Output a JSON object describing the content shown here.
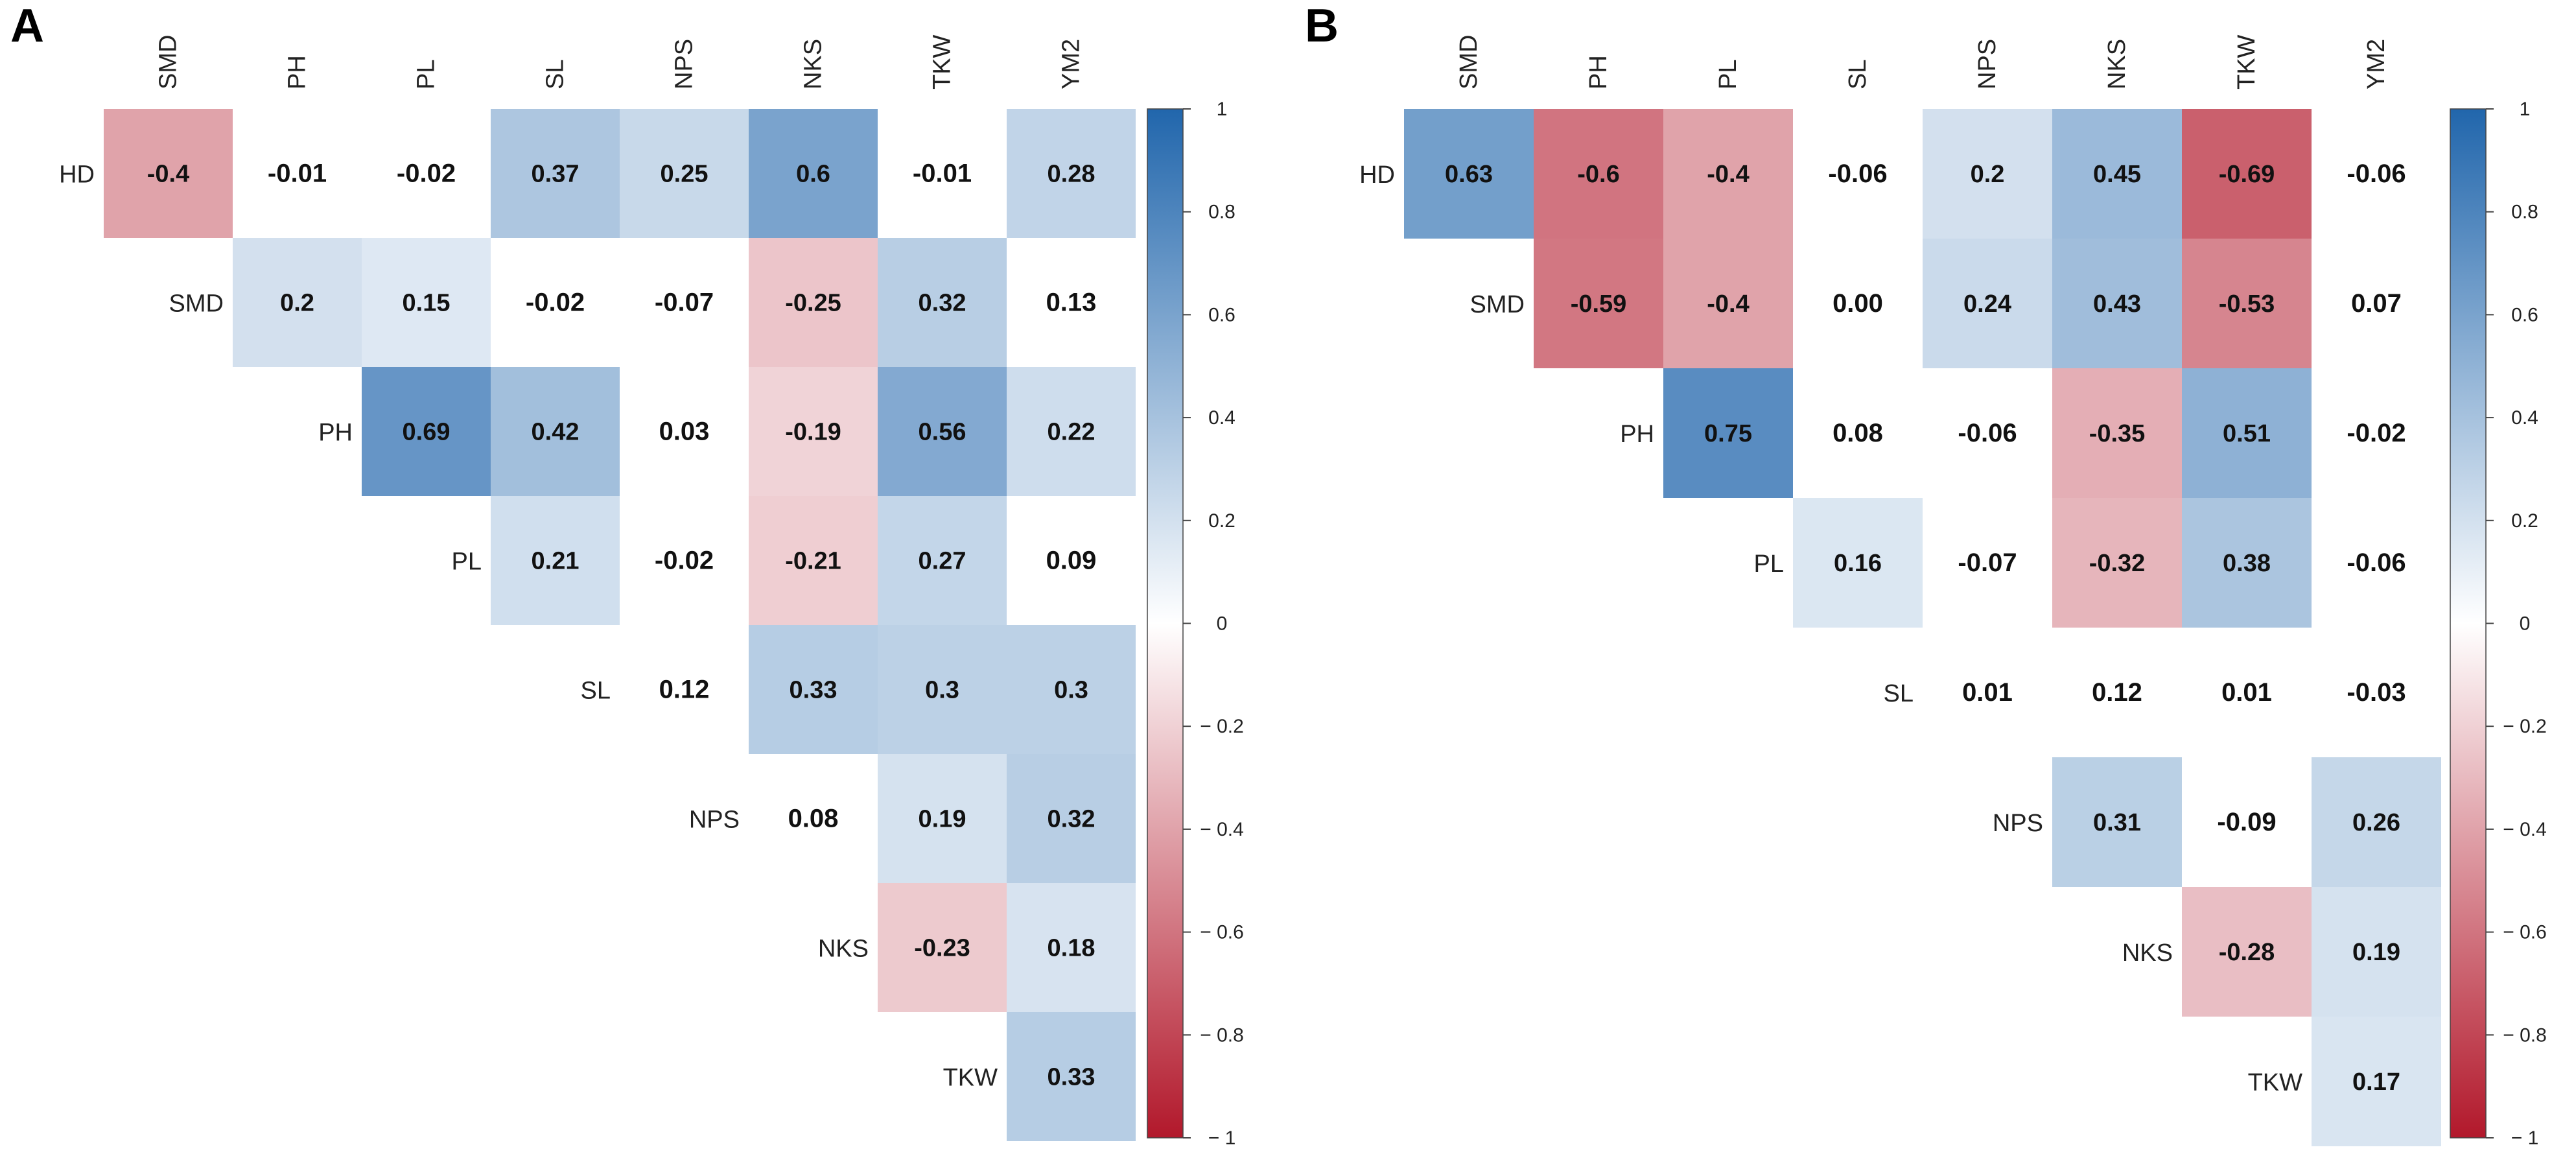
{
  "chart_data": [
    {
      "type": "heatmap",
      "panel_label": "A",
      "columns": [
        "SMD",
        "PH",
        "PL",
        "SL",
        "NPS",
        "NKS",
        "TKW",
        "YM2"
      ],
      "rows": [
        "HD",
        "SMD",
        "PH",
        "PL",
        "SL",
        "NPS",
        "NKS",
        "TKW"
      ],
      "values": [
        [
          "-0.4",
          "-0.01",
          "-0.02",
          "0.37",
          "0.25",
          "0.6",
          "-0.01",
          "0.28"
        ],
        [
          null,
          "0.2",
          "0.15",
          "-0.02",
          "-0.07",
          "-0.25",
          "0.32",
          "0.13"
        ],
        [
          null,
          null,
          "0.69",
          "0.42",
          "0.03",
          "-0.19",
          "0.56",
          "0.22"
        ],
        [
          null,
          null,
          null,
          "0.21",
          "-0.02",
          "-0.21",
          "0.27",
          "0.09"
        ],
        [
          null,
          null,
          null,
          null,
          "0.12",
          "0.33",
          "0.3",
          "0.3"
        ],
        [
          null,
          null,
          null,
          null,
          null,
          "0.08",
          "0.19",
          "0.32"
        ],
        [
          null,
          null,
          null,
          null,
          null,
          null,
          "-0.23",
          "0.18"
        ],
        [
          null,
          null,
          null,
          null,
          null,
          null,
          null,
          "0.33"
        ]
      ],
      "colorbar": {
        "range": [
          -1,
          1
        ],
        "ticks": [
          "1",
          "0.8",
          "0.6",
          "0.4",
          "0.2",
          "0",
          "− 0.2",
          "− 0.4",
          "− 0.6",
          "− 0.8",
          "− 1"
        ],
        "low_color": "#b2182b",
        "mid_color": "#ffffff",
        "high_color": "#2166ac"
      }
    },
    {
      "type": "heatmap",
      "panel_label": "B",
      "columns": [
        "SMD",
        "PH",
        "PL",
        "SL",
        "NPS",
        "NKS",
        "TKW",
        "YM2"
      ],
      "rows": [
        "HD",
        "SMD",
        "PH",
        "PL",
        "SL",
        "NPS",
        "NKS",
        "TKW"
      ],
      "values": [
        [
          "0.63",
          "-0.6",
          "-0.4",
          "-0.06",
          "0.2",
          "0.45",
          "-0.69",
          "-0.06"
        ],
        [
          null,
          "-0.59",
          "-0.4",
          "0.00",
          "0.24",
          "0.43",
          "-0.53",
          "0.07"
        ],
        [
          null,
          null,
          "0.75",
          "0.08",
          "-0.06",
          "-0.35",
          "0.51",
          "-0.02"
        ],
        [
          null,
          null,
          null,
          "0.16",
          "-0.07",
          "-0.32",
          "0.38",
          "-0.06"
        ],
        [
          null,
          null,
          null,
          null,
          "0.01",
          "0.12",
          "0.01",
          "-0.03"
        ],
        [
          null,
          null,
          null,
          null,
          null,
          "0.31",
          "-0.09",
          "0.26"
        ],
        [
          null,
          null,
          null,
          null,
          null,
          null,
          "-0.28",
          "0.19"
        ],
        [
          null,
          null,
          null,
          null,
          null,
          null,
          null,
          "0.17"
        ]
      ],
      "colorbar": {
        "range": [
          -1,
          1
        ],
        "ticks": [
          "1",
          "0.8",
          "0.6",
          "0.4",
          "0.2",
          "0",
          "− 0.2",
          "− 0.4",
          "− 0.6",
          "− 0.8",
          "− 1"
        ],
        "low_color": "#b2182b",
        "mid_color": "#ffffff",
        "high_color": "#2166ac"
      }
    }
  ]
}
